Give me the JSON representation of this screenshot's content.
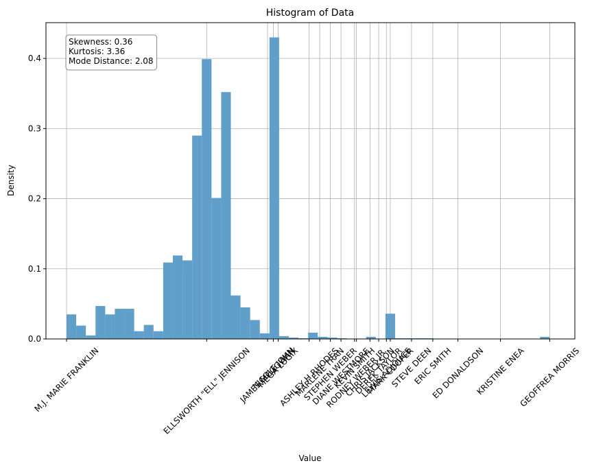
{
  "chart_data": {
    "type": "histogram",
    "title": "Histogram of Data",
    "x_label": "Value",
    "y_label": "Density",
    "bins": [
      0,
      1,
      2,
      3,
      4,
      5,
      6,
      7,
      8,
      9,
      10,
      11,
      12,
      13,
      14,
      15,
      16,
      17,
      18,
      19,
      20,
      21,
      22,
      23,
      24,
      25,
      26,
      27,
      28,
      29,
      30,
      31,
      32,
      33,
      34,
      35,
      36,
      37,
      38,
      39,
      40,
      41,
      42,
      43,
      44,
      45,
      46,
      47,
      48,
      49,
      50
    ],
    "values": [
      0.035,
      0.019,
      0.005,
      0.047,
      0.035,
      0.043,
      0.043,
      0.011,
      0.02,
      0.011,
      0.109,
      0.119,
      0.112,
      0.29,
      0.399,
      0.201,
      0.352,
      0.062,
      0.045,
      0.027,
      0.008,
      0.43,
      0.004,
      0.002,
      0.001,
      0.009,
      0.003,
      0.002,
      0.001,
      0,
      0,
      0.003,
      0,
      0.036,
      0.001,
      0.001,
      0.001,
      0.001,
      0,
      0,
      0,
      0,
      0,
      0,
      0,
      0,
      0,
      0,
      0,
      0.003
    ],
    "color": "#5f9fca",
    "xlim": [
      -2.13,
      52.6
    ],
    "xticks": [
      {
        "value": 0,
        "label": "M.J. MARIE FRANKLIN"
      },
      {
        "value": 14.5,
        "label": "ELLSWORTH \"ELL\" JENNISON"
      },
      {
        "value": 20.8,
        "label": "JAMES MCGOWAN"
      },
      {
        "value": 21.4,
        "label": "NICOLE JOHN"
      },
      {
        "value": 21.9,
        "label": "MEGA LOGIX"
      },
      {
        "value": 25.1,
        "label": "ASHLEY H RHODES"
      },
      {
        "value": 26.2,
        "label": "MARLENE TRAN"
      },
      {
        "value": 27.3,
        "label": "STEPHEN WEBER"
      },
      {
        "value": 28.4,
        "label": "DIANE WESTMORE"
      },
      {
        "value": 29.8,
        "label": "KEVIN SMITH"
      },
      {
        "value": 30.0,
        "label": "RODNEY WEBER JR."
      },
      {
        "value": 31.4,
        "label": "CHRIS JACKSON"
      },
      {
        "value": 32.3,
        "label": "DEREK TAYLOR"
      },
      {
        "value": 33.1,
        "label": "LEWIS ADJOUCE"
      },
      {
        "value": 33.5,
        "label": "MARK COOPER"
      },
      {
        "value": 35.7,
        "label": "STEVE DEEN"
      },
      {
        "value": 37.9,
        "label": "ERIC SMITH"
      },
      {
        "value": 40.5,
        "label": "ED DONALDSON"
      },
      {
        "value": 44.9,
        "label": "KRISTINE ENEA"
      },
      {
        "value": 50.0,
        "label": "GEOFFREA MORRIS"
      }
    ],
    "ylim": [
      0,
      0.451
    ],
    "yticks": [
      {
        "value": 0,
        "label": "0.0"
      },
      0.1,
      0.2,
      0.3,
      0.4
    ],
    "grid": true,
    "annotation": [
      "Skewness: 0.36",
      "Kurtosis: 3.36",
      "Mode Distance: 2.08"
    ]
  }
}
